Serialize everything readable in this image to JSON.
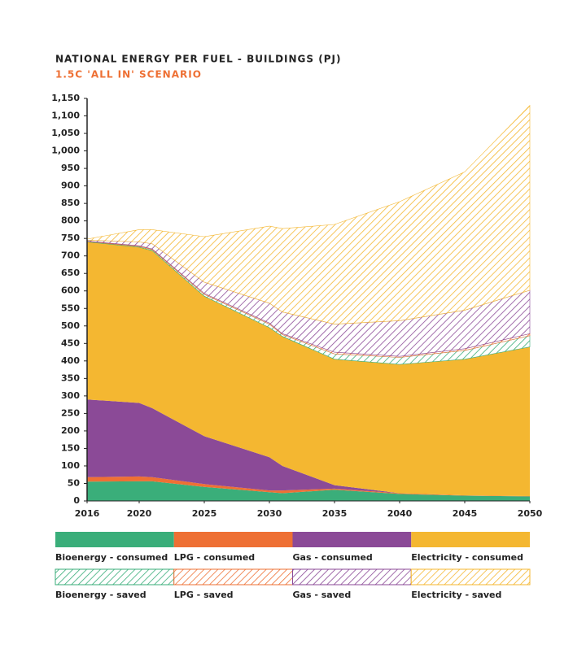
{
  "chart_data": {
    "type": "stacked_area",
    "title": "NATIONAL ENERGY PER FUEL - BUILDINGS (PJ)",
    "subtitle": "1.5C 'ALL IN' SCENARIO",
    "x": [
      2016,
      2020,
      2021,
      2025,
      2030,
      2031,
      2035,
      2040,
      2045,
      2050
    ],
    "xlim": [
      2016,
      2050
    ],
    "xticks": [
      2016,
      2020,
      2025,
      2030,
      2035,
      2040,
      2045,
      2050
    ],
    "ylim": [
      0,
      1150
    ],
    "yticks": [
      0,
      50,
      100,
      150,
      200,
      250,
      300,
      350,
      400,
      450,
      500,
      550,
      600,
      650,
      700,
      750,
      800,
      850,
      900,
      950,
      {
        "value": 1000,
        "label": "1,000"
      },
      {
        "value": 1050,
        "label": "1,050"
      },
      {
        "value": 1100,
        "label": "1,100"
      },
      {
        "value": 1150,
        "label": "1,150"
      }
    ],
    "series": [
      {
        "name": "Bioenergy - consumed",
        "color": "#3aae7a",
        "style": "solid",
        "values": [
          55,
          56,
          56,
          40,
          25,
          22,
          32,
          20,
          15,
          13
        ]
      },
      {
        "name": "LPG - consumed",
        "color": "#ee7034",
        "style": "solid",
        "values": [
          13,
          14,
          12,
          8,
          5,
          8,
          3,
          2,
          1,
          1
        ]
      },
      {
        "name": "Gas - consumed",
        "color": "#8b4a97",
        "style": "solid",
        "values": [
          222,
          210,
          197,
          137,
          95,
          70,
          10,
          0,
          0,
          0
        ]
      },
      {
        "name": "Electricity - consumed",
        "color": "#f4b731",
        "style": "solid",
        "values": [
          450,
          445,
          450,
          400,
          370,
          370,
          360,
          368,
          389,
          426
        ]
      },
      {
        "name": "Bioenergy - saved",
        "color": "#3aae7a",
        "style": "hatched",
        "values": [
          1,
          2,
          3,
          5,
          10,
          5,
          15,
          20,
          25,
          32
        ]
      },
      {
        "name": "LPG - saved",
        "color": "#ee7034",
        "style": "hatched",
        "values": [
          1,
          2,
          2,
          3,
          3,
          3,
          5,
          3,
          5,
          6
        ]
      },
      {
        "name": "Gas - saved",
        "color": "#8b4a97",
        "style": "hatched",
        "values": [
          3,
          11,
          15,
          32,
          57,
          62,
          80,
          102,
          110,
          124
        ]
      },
      {
        "name": "Electricity - saved",
        "color": "#f4b731",
        "style": "hatched",
        "values": [
          3,
          35,
          40,
          130,
          220,
          238,
          285,
          340,
          395,
          528
        ]
      }
    ]
  }
}
